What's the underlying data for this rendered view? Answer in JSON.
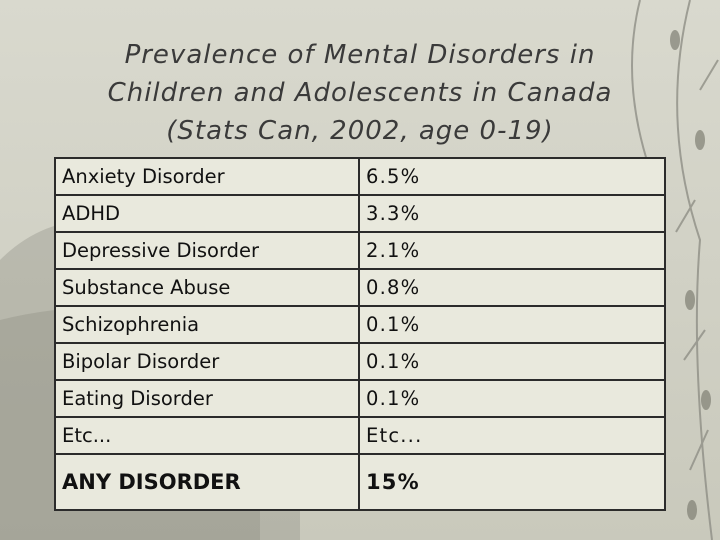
{
  "slide": {
    "title_lines": [
      "Prevalence of Mental Disorders in",
      "Children and Adolescents in Canada",
      "(Stats Can, 2002, age 0-19)"
    ],
    "rows": [
      {
        "disorder": "Anxiety Disorder",
        "prevalence": "6.5%"
      },
      {
        "disorder": "ADHD",
        "prevalence": "3.3%"
      },
      {
        "disorder": "Depressive Disorder",
        "prevalence": "2.1%"
      },
      {
        "disorder": "Substance Abuse",
        "prevalence": "0.8%"
      },
      {
        "disorder": "Schizophrenia",
        "prevalence": "0.1%"
      },
      {
        "disorder": "Bipolar Disorder",
        "prevalence": "0.1%"
      },
      {
        "disorder": "Eating Disorder",
        "prevalence": "0.1%"
      },
      {
        "disorder": "Etc...",
        "prevalence": "Etc..."
      },
      {
        "disorder": "ANY DISORDER",
        "prevalence": "15%"
      }
    ]
  },
  "colors": {
    "background": "#d2d2c6",
    "cell_fill": "#e9e9dd",
    "grid_line": "#2b2b2b",
    "title_text": "#3a3a3a",
    "decoration": "#8f8f86"
  }
}
